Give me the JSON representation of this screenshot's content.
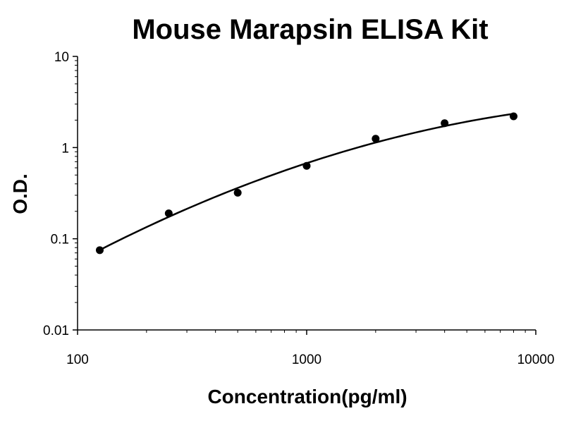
{
  "chart_data": {
    "type": "scatter",
    "title": "Mouse Marapsin ELISA Kit",
    "xlabel": "Concentration(pg/ml)",
    "ylabel": "O.D.",
    "x_scale": "log",
    "y_scale": "log",
    "xlim": [
      100,
      10000
    ],
    "ylim": [
      0.01,
      10
    ],
    "x_ticks": [
      "100",
      "1000",
      "10000"
    ],
    "y_ticks": [
      "10",
      "1",
      "0.1",
      "0.01"
    ],
    "series": [
      {
        "x": [
          125,
          250,
          500,
          1000,
          2000,
          4000,
          8000
        ],
        "y": [
          0.075,
          0.19,
          0.32,
          0.63,
          1.25,
          1.85,
          2.2
        ]
      }
    ],
    "fit_curve": "smooth",
    "grid": false,
    "legend": "none",
    "colors": {
      "marker": "#000000",
      "line": "#000000",
      "axis": "#000000"
    }
  }
}
